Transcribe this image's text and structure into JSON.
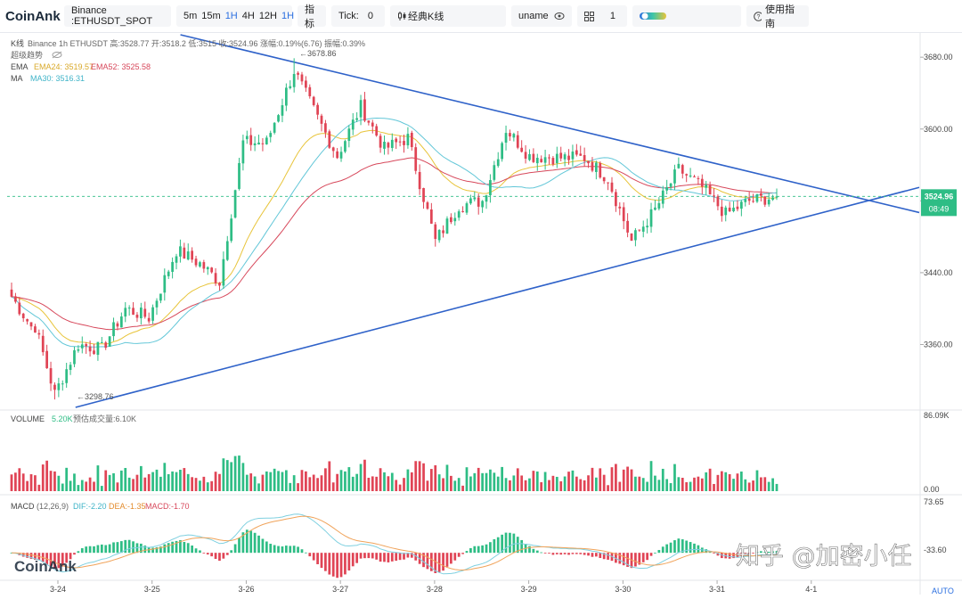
{
  "toolbar": {
    "logo": "CoinAnk",
    "symbol": "Binance :ETHUSDT_SPOT",
    "timeframes": [
      "5m",
      "15m",
      "1H",
      "4H",
      "12H",
      "1H"
    ],
    "active_timeframe_index": 2,
    "indicators_label": "指标",
    "tick_label": "Tick:",
    "tick_value": "0",
    "chart_type_label": "经典K线",
    "user": "uname",
    "layout_count": "1",
    "help_label": "使用指南"
  },
  "header": {
    "kline_label": "K线",
    "line1_info": "Binance 1h ETHUSDT 高:3528.77  开:3518.2  低:3515  收:3524.96 涨幅:0.19%(6.76) 振幅:0.39%",
    "super_trend": "超级趋势",
    "ema_label": "EMA",
    "ema24": "EMA24: 3519.57",
    "ema52": "EMA52: 3525.58",
    "ma_label": "MA",
    "ma30": "MA30: 3516.31"
  },
  "annotations": {
    "high_label": "←3678.86",
    "low_label": "←3298.76"
  },
  "price_tag": {
    "price": "3524.96",
    "countdown": "08:49"
  },
  "volume": {
    "label": "VOLUME",
    "value": "5.20K",
    "estimate": "预估成交量:6.10K",
    "axis_max": "86.09K",
    "axis_zero": "0.00"
  },
  "macd": {
    "label": "MACD",
    "params": "(12,26,9)",
    "dif": "DIF:-2.20",
    "dea": "DEA:-1.35",
    "macd": "MACD:-1.70",
    "axis_top": "73.65",
    "axis_bottom": "-33.60"
  },
  "auto_label": "AUTO",
  "watermark": {
    "brand": "CoinAnk",
    "zhihu": "知乎 @加密小任"
  },
  "colors": {
    "up": "#2ebd85",
    "down": "#e04455",
    "ema24": "#e8c43a",
    "ema52": "#d7485b",
    "ma30": "#63c7d8",
    "trendline": "#2f62c9",
    "dif": "#7fd0e0",
    "dea": "#f0a35a"
  },
  "chart_data": {
    "type": "candlestick",
    "price_ticks": [
      "3680.00",
      "3600.00",
      "3520.00",
      "3440.00",
      "3360.00"
    ],
    "price_tick_values": [
      3680,
      3600,
      3520,
      3440,
      3360
    ],
    "x_ticks": [
      "3-24",
      "3-25",
      "3-26",
      "3-27",
      "3-28",
      "3-29",
      "3-30",
      "3-31",
      "4-1"
    ],
    "price_range": [
      3288,
      3705
    ],
    "candles_approx_per_day": 24,
    "segments": [
      [
        3420,
        3380
      ],
      [
        3395,
        3305
      ],
      [
        3305,
        3360
      ],
      [
        3360,
        3355
      ],
      [
        3355,
        3400
      ],
      [
        3400,
        3390
      ],
      [
        3390,
        3465
      ],
      [
        3465,
        3450
      ],
      [
        3450,
        3430
      ],
      [
        3430,
        3585
      ],
      [
        3585,
        3585
      ],
      [
        3585,
        3665
      ],
      [
        3665,
        3612
      ],
      [
        3612,
        3570
      ],
      [
        3570,
        3625
      ],
      [
        3625,
        3578
      ],
      [
        3578,
        3590
      ],
      [
        3590,
        3475
      ],
      [
        3475,
        3515
      ],
      [
        3515,
        3520
      ],
      [
        3520,
        3600
      ],
      [
        3600,
        3570
      ],
      [
        3570,
        3568
      ],
      [
        3568,
        3568
      ],
      [
        3568,
        3545
      ],
      [
        3545,
        3475
      ],
      [
        3475,
        3510
      ],
      [
        3510,
        3555
      ],
      [
        3555,
        3535
      ],
      [
        3535,
        3505
      ],
      [
        3505,
        3520
      ],
      [
        3520,
        3525
      ]
    ],
    "segment_lengths": [
      6,
      6,
      6,
      6,
      6,
      6,
      7,
      6,
      5,
      6,
      6,
      7,
      6,
      5,
      6,
      6,
      6,
      7,
      6,
      6,
      6,
      6,
      8,
      6,
      6,
      6,
      6,
      6,
      6,
      6,
      6,
      7
    ],
    "high_point": 3678.86,
    "low_point": 3298.76,
    "last_close": 3524.96,
    "ema24_last": 3519.57,
    "ema52_last": 3525.58,
    "ma30_last": 3516.31,
    "upper_trendline": [
      [
        0.19,
        3705
      ],
      [
        1.0,
        3507
      ]
    ],
    "lower_trendline": [
      [
        0.075,
        3290
      ],
      [
        1.0,
        3535
      ]
    ],
    "volume_max": 86090,
    "macd_range": [
      -33.6,
      73.65
    ]
  }
}
